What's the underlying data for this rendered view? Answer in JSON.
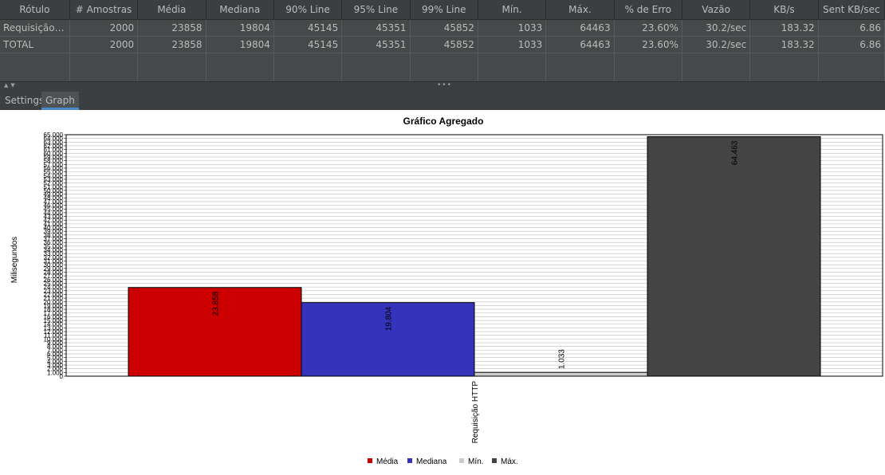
{
  "table": {
    "columns": [
      "Rótulo",
      "# Amostras",
      "Média",
      "Mediana",
      "90% Line",
      "95% Line",
      "99% Line",
      "Mín.",
      "Máx.",
      "% de Erro",
      "Vazão",
      "KB/s",
      "Sent KB/sec"
    ],
    "rows": [
      [
        "Requisição ...",
        "2000",
        "23858",
        "19804",
        "45145",
        "45351",
        "45852",
        "1033",
        "64463",
        "23.60%",
        "30.2/sec",
        "183.32",
        "6.86"
      ],
      [
        "TOTAL",
        "2000",
        "23858",
        "19804",
        "45145",
        "45351",
        "45852",
        "1033",
        "64463",
        "23.60%",
        "30.2/sec",
        "183.32",
        "6.86"
      ]
    ]
  },
  "splitter": {
    "arrows": "▲▼",
    "dots": "•••"
  },
  "tabs": {
    "settings": "Settings",
    "graph": "Graph",
    "active": "graph"
  },
  "chart_data": {
    "type": "bar",
    "title": "Gráfico Agregado",
    "xlabel": "",
    "ylabel": "Milisegundos",
    "categories": [
      "Requisição HTTP"
    ],
    "series": [
      {
        "name": "Média",
        "values": [
          23858
        ],
        "color": "#cc0000",
        "label": "23.858"
      },
      {
        "name": "Mediana",
        "values": [
          19804
        ],
        "color": "#3333bb",
        "label": "19.804"
      },
      {
        "name": "Mín.",
        "values": [
          1033
        ],
        "color": "#cccccc",
        "label": "1.033"
      },
      {
        "name": "Máx.",
        "values": [
          64463
        ],
        "color": "#444444",
        "label": "64.463"
      }
    ],
    "ylim": [
      0,
      65000
    ],
    "grid": true,
    "legend": "bottom"
  }
}
